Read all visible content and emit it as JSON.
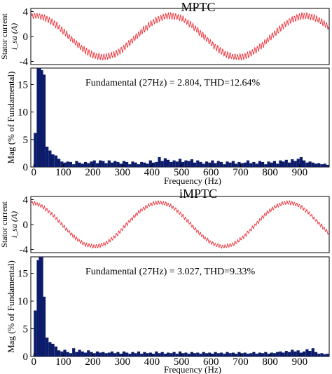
{
  "chart_data": [
    {
      "panel": "MPTC",
      "current_plot": {
        "type": "line",
        "title": "MPTC",
        "ylabel": "Stator current",
        "ylabel_sub": "i_sa (A)",
        "yticks": [
          "4",
          "0",
          "-4"
        ],
        "ylim": [
          -4.5,
          4.5
        ],
        "grid": false,
        "series": [
          {
            "color": "#e8202a",
            "waveform": "sine",
            "amplitude_A": 3.3,
            "ripple_A": 0.6,
            "periods": 2.2,
            "phase_deg": 80
          }
        ]
      },
      "fft_plot": {
        "type": "bar",
        "xlabel": "Frequency (Hz)",
        "ylabel": "Mag (% of Fundamental)",
        "xticks": [
          "0",
          "100",
          "200",
          "300",
          "400",
          "500",
          "600",
          "700",
          "800",
          "900"
        ],
        "yticks": [
          "0",
          "5",
          "10",
          "15"
        ],
        "xlim": [
          -10,
          1000
        ],
        "ylim": [
          0,
          18
        ],
        "annotation": "Fundamental (27Hz) = 2.804, THD=12.64%",
        "bar_color": "#0c1c6a",
        "series": [
          {
            "x": [
              5,
              15,
              20,
              27,
              35,
              45,
              55,
              65,
              75,
              85,
              95,
              105,
              115,
              125,
              135,
              145,
              155,
              165,
              175,
              185,
              195,
              205,
              215,
              225,
              235,
              245,
              255,
              265,
              275,
              285,
              295,
              305,
              315,
              325,
              335,
              345,
              355,
              365,
              375,
              385,
              395,
              405,
              415,
              425,
              435,
              445,
              455,
              465,
              475,
              485,
              495,
              505,
              515,
              525,
              535,
              545,
              555,
              565,
              575,
              585,
              595,
              605,
              615,
              625,
              635,
              645,
              655,
              665,
              675,
              685,
              695,
              705,
              715,
              725,
              735,
              745,
              755,
              765,
              775,
              785,
              795,
              805,
              815,
              825,
              835,
              845,
              855,
              865,
              875,
              885,
              895,
              905,
              915,
              925,
              935,
              945,
              955,
              965,
              975,
              985,
              995
            ],
            "values": [
              6.2,
              18,
              18.5,
              17.6,
              16.8,
              3.7,
              3.0,
              2.3,
              2.1,
              1.5,
              1.0,
              0.8,
              1.0,
              0.9,
              0.5,
              1.1,
              0.8,
              0.6,
              0.9,
              0.7,
              1.0,
              1.2,
              0.7,
              1.2,
              1.1,
              0.7,
              1.2,
              0.8,
              1.1,
              0.9,
              0.6,
              1.1,
              0.9,
              0.5,
              1.0,
              0.8,
              0.5,
              0.9,
              0.8,
              0.6,
              1.2,
              0.8,
              0.9,
              1.8,
              1.1,
              1.6,
              1.3,
              0.9,
              1.2,
              1.0,
              1.5,
              0.9,
              1.2,
              1.1,
              1.4,
              0.8,
              1.2,
              0.9,
              0.6,
              1.0,
              0.8,
              1.2,
              0.7,
              1.1,
              0.9,
              0.5,
              1.0,
              0.8,
              1.1,
              0.6,
              0.9,
              0.7,
              0.8,
              1.2,
              0.7,
              0.9,
              0.6,
              1.1,
              0.9,
              0.5,
              1.0,
              0.8,
              1.1,
              0.6,
              1.2,
              1.0,
              1.3,
              0.8,
              1.4,
              1.1,
              1.5,
              1.8,
              1.2,
              0.8,
              1.0,
              0.8,
              0.6,
              0.7,
              0.5,
              0.6,
              0.4
            ]
          }
        ]
      }
    },
    {
      "panel": "iMPTC",
      "current_plot": {
        "type": "line",
        "title": "iMPTC",
        "ylabel": "Stator current",
        "ylabel_sub": "i_sa (A)",
        "yticks": [
          "4",
          "0",
          "-4"
        ],
        "ylim": [
          -4.5,
          4.5
        ],
        "grid": false,
        "series": [
          {
            "color": "#e8202a",
            "waveform": "sine",
            "amplitude_A": 3.5,
            "ripple_A": 0.35,
            "periods": 2.3,
            "phase_deg": 95
          }
        ]
      },
      "fft_plot": {
        "type": "bar",
        "xlabel": "Frequency (Hz)",
        "ylabel": "Mag (% of Fundamental)",
        "xticks": [
          "0",
          "100",
          "200",
          "300",
          "400",
          "500",
          "600",
          "700",
          "800",
          "900"
        ],
        "yticks": [
          "0",
          "5",
          "10",
          "15"
        ],
        "xlim": [
          -10,
          1000
        ],
        "ylim": [
          0,
          18
        ],
        "annotation": "Fundamental (27Hz) = 3.027, THD=9.33%",
        "bar_color": "#0c1c6a",
        "series": [
          {
            "x": [
              5,
              15,
              22,
              27,
              35,
              45,
              55,
              65,
              75,
              85,
              95,
              105,
              115,
              125,
              135,
              145,
              155,
              165,
              175,
              185,
              195,
              205,
              215,
              225,
              235,
              245,
              255,
              265,
              275,
              285,
              295,
              305,
              315,
              325,
              335,
              345,
              355,
              365,
              375,
              385,
              395,
              405,
              415,
              425,
              435,
              445,
              455,
              465,
              475,
              485,
              495,
              505,
              515,
              525,
              535,
              545,
              555,
              565,
              575,
              585,
              595,
              605,
              615,
              625,
              635,
              645,
              655,
              665,
              675,
              685,
              695,
              705,
              715,
              725,
              735,
              745,
              755,
              765,
              775,
              785,
              795,
              805,
              815,
              825,
              835,
              845,
              855,
              865,
              875,
              885,
              895,
              905,
              915,
              925,
              935,
              945,
              955,
              965,
              975,
              985,
              995
            ],
            "values": [
              8.3,
              17.4,
              18.2,
              18.5,
              10.8,
              3.4,
              2.6,
              2.3,
              1.8,
              1.1,
              0.9,
              1.2,
              0.8,
              0.6,
              1.5,
              0.8,
              1.2,
              0.9,
              0.7,
              1.1,
              0.8,
              0.6,
              0.9,
              0.7,
              0.8,
              0.6,
              0.7,
              0.9,
              0.6,
              0.8,
              0.5,
              0.9,
              0.7,
              0.5,
              0.8,
              0.6,
              0.9,
              0.5,
              0.8,
              0.6,
              0.7,
              0.5,
              0.9,
              0.6,
              0.8,
              0.5,
              0.7,
              0.6,
              0.8,
              0.5,
              0.9,
              0.6,
              0.7,
              0.5,
              0.8,
              0.6,
              0.7,
              0.5,
              0.8,
              0.6,
              0.7,
              0.5,
              0.8,
              0.6,
              0.7,
              0.5,
              0.8,
              0.6,
              0.7,
              0.5,
              0.8,
              0.6,
              0.7,
              0.5,
              0.6,
              0.8,
              0.5,
              0.7,
              0.6,
              0.8,
              0.5,
              0.7,
              0.6,
              0.8,
              0.9,
              0.7,
              1.0,
              0.8,
              1.2,
              0.9,
              1.1,
              0.7,
              0.9,
              1.3,
              1.0,
              1.5,
              0.8,
              0.5,
              0.6,
              0.4,
              0.5
            ]
          }
        ]
      }
    }
  ]
}
